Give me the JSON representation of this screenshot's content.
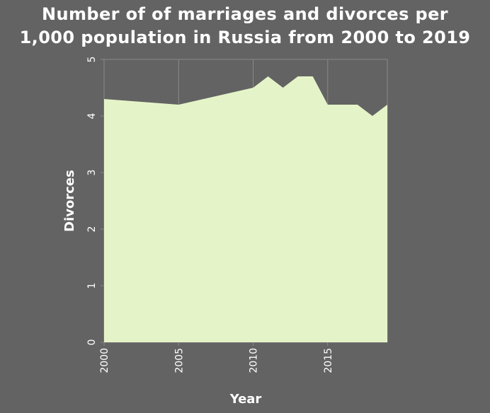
{
  "chart_data": {
    "type": "area",
    "title_lines": [
      "Number of of marriages and divorces per",
      "1,000 population in Russia from 2000 to 2019"
    ],
    "xlabel": "Year",
    "ylabel": "Divorces",
    "x": [
      2000,
      2005,
      2010,
      2011,
      2012,
      2013,
      2014,
      2015,
      2016,
      2017,
      2018,
      2019
    ],
    "values": [
      4.3,
      4.2,
      4.5,
      4.7,
      4.5,
      4.7,
      4.7,
      4.2,
      4.2,
      4.2,
      4.0,
      4.2
    ],
    "xlim": [
      2000,
      2019
    ],
    "ylim": [
      0,
      5
    ],
    "xticks": [
      2000,
      2005,
      2010,
      2015
    ],
    "yticks": [
      0,
      1,
      2,
      3,
      4,
      5
    ],
    "grid": true,
    "colors": {
      "background": "#636363",
      "area": "#e5f4c8",
      "grid": "#8a8a8a"
    }
  }
}
